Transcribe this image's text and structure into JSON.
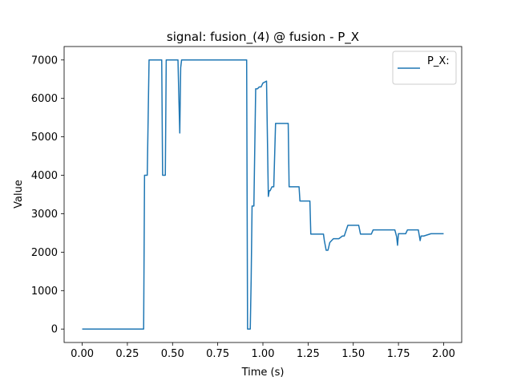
{
  "chart_data": {
    "type": "line",
    "title": "signal: fusion_(4) @ fusion - P_X",
    "xlabel": "Time (s)",
    "ylabel": "Value",
    "xlim": [
      -0.1,
      2.1
    ],
    "ylim": [
      -350,
      7350
    ],
    "xticks": [
      0.0,
      0.25,
      0.5,
      0.75,
      1.0,
      1.25,
      1.5,
      1.75,
      2.0
    ],
    "xtick_labels": [
      "0.00",
      "0.25",
      "0.50",
      "0.75",
      "1.00",
      "1.25",
      "1.50",
      "1.75",
      "2.00"
    ],
    "yticks": [
      0,
      1000,
      2000,
      3000,
      4000,
      5000,
      6000,
      7000
    ],
    "ytick_labels": [
      "0",
      "1000",
      "2000",
      "3000",
      "4000",
      "5000",
      "6000",
      "7000"
    ],
    "grid": false,
    "legend_position": "top-right",
    "line_color": "#1f77b4",
    "series": [
      {
        "name": "P_X:",
        "x": [
          0.0,
          0.34,
          0.345,
          0.36,
          0.37,
          0.38,
          0.44,
          0.445,
          0.46,
          0.465,
          0.53,
          0.535,
          0.54,
          0.545,
          0.55,
          0.56,
          0.91,
          0.915,
          0.93,
          0.935,
          0.94,
          0.95,
          0.96,
          0.97,
          0.98,
          0.99,
          1.0,
          1.02,
          1.03,
          1.035,
          1.04,
          1.05,
          1.06,
          1.07,
          1.08,
          1.09,
          1.1,
          1.14,
          1.145,
          1.2,
          1.205,
          1.26,
          1.265,
          1.33,
          1.335,
          1.34,
          1.35,
          1.36,
          1.37,
          1.38,
          1.39,
          1.4,
          1.42,
          1.44,
          1.45,
          1.47,
          1.48,
          1.53,
          1.54,
          1.6,
          1.61,
          1.7,
          1.73,
          1.74,
          1.745,
          1.75,
          1.76,
          1.79,
          1.8,
          1.82,
          1.83,
          1.86,
          1.87,
          1.875,
          1.88,
          1.89,
          1.93,
          1.94,
          1.99,
          2.0
        ],
        "y": [
          0,
          0,
          4000,
          4000,
          7000,
          7000,
          7000,
          4000,
          4000,
          7000,
          7000,
          6000,
          5100,
          6800,
          7000,
          7000,
          7000,
          0,
          0,
          1300,
          3200,
          3200,
          6250,
          6250,
          6300,
          6300,
          6400,
          6450,
          3450,
          3600,
          3600,
          3700,
          3700,
          5350,
          5350,
          5350,
          5350,
          5350,
          3700,
          3700,
          3330,
          3330,
          2470,
          2470,
          2470,
          2300,
          2050,
          2050,
          2250,
          2300,
          2350,
          2350,
          2350,
          2420,
          2420,
          2700,
          2700,
          2700,
          2470,
          2470,
          2580,
          2580,
          2580,
          2400,
          2180,
          2480,
          2480,
          2480,
          2580,
          2580,
          2580,
          2580,
          2300,
          2420,
          2420,
          2420,
          2480,
          2480,
          2480,
          2480
        ]
      }
    ]
  }
}
